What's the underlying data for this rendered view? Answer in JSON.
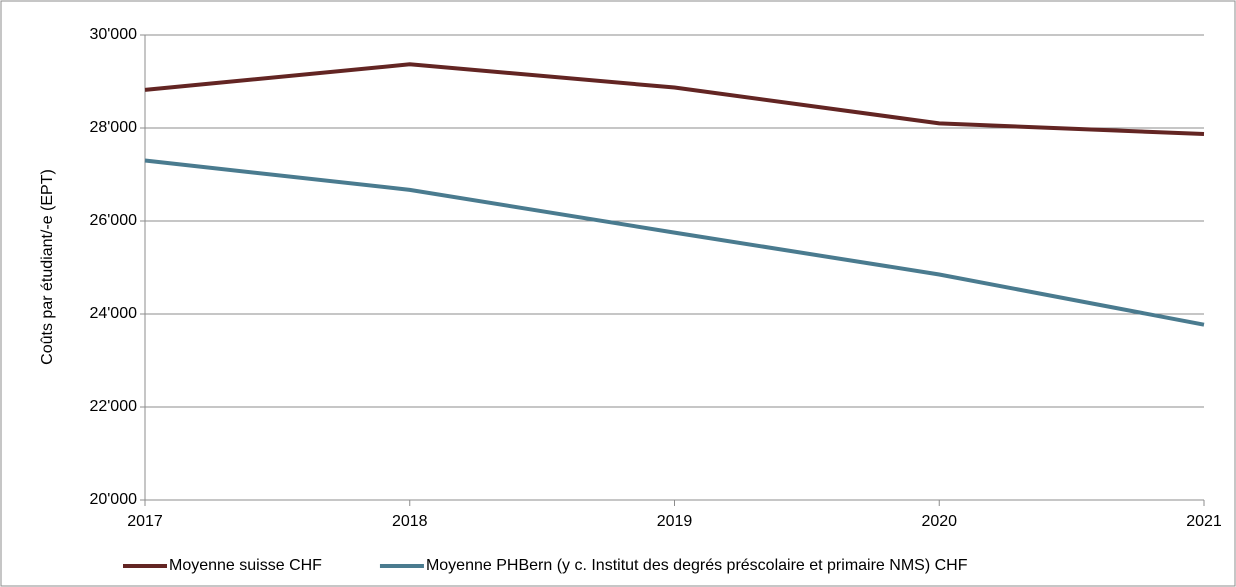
{
  "chart_data": {
    "type": "line",
    "y_label": "Coûts par étudiant/-e (EPT)",
    "x": [
      2017,
      2018,
      2019,
      2020,
      2021
    ],
    "xlim": [
      2017,
      2021
    ],
    "xticks": [
      2017,
      2018,
      2019,
      2020,
      2021
    ],
    "ylim": [
      20000,
      30000
    ],
    "yticks": [
      {
        "value": 20000,
        "label": "20'000"
      },
      {
        "value": 22000,
        "label": "22'000"
      },
      {
        "value": 24000,
        "label": "24'000"
      },
      {
        "value": 26000,
        "label": "26'000"
      },
      {
        "value": 28000,
        "label": "28'000"
      },
      {
        "value": 30000,
        "label": "30'000"
      }
    ],
    "grid": true,
    "legend": "bottom",
    "series": [
      {
        "name": "Moyenne suisse CHF",
        "color": "#632523",
        "values": [
          28820,
          29370,
          28870,
          28100,
          27870
        ]
      },
      {
        "name": "Moyenne PHBern (y c. Institut des degrés préscolaire et primaire NMS) CHF",
        "color": "#4a7b8f",
        "values": [
          27300,
          26670,
          25750,
          24850,
          23770
        ]
      }
    ]
  }
}
